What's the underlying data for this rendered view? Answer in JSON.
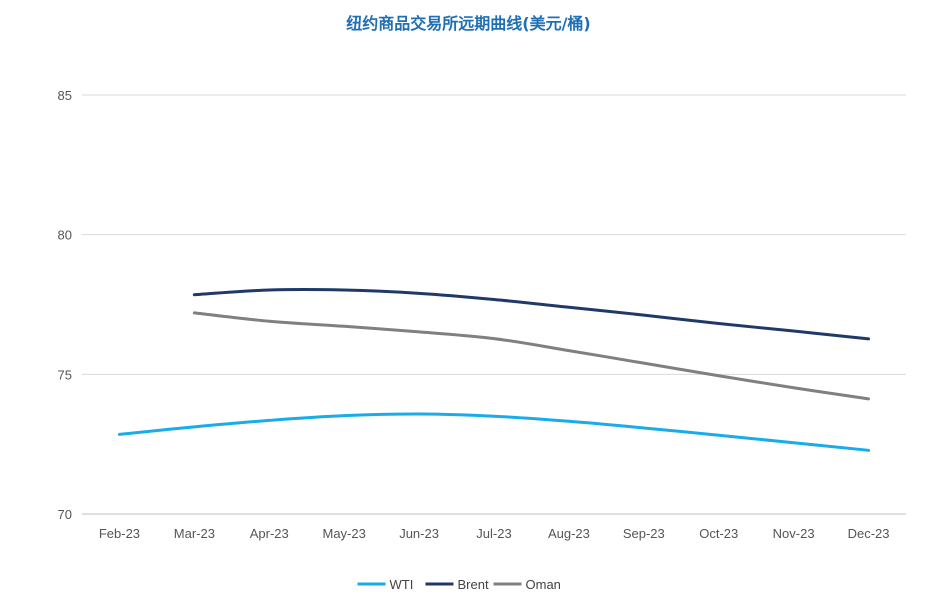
{
  "chart_data": {
    "type": "line",
    "title": "纽约商品交易所远期曲线(美元/桶)",
    "xlabel": "",
    "ylabel": "",
    "categories": [
      "Feb-23",
      "Mar-23",
      "Apr-23",
      "May-23",
      "Jun-23",
      "Jul-23",
      "Aug-23",
      "Sep-23",
      "Oct-23",
      "Nov-23",
      "Dec-23"
    ],
    "ylim": [
      70,
      85
    ],
    "yticks": [
      70,
      75,
      80,
      85
    ],
    "grid": true,
    "legend_position": "bottom",
    "series": [
      {
        "name": "WTI",
        "color": "#1aace8",
        "values": [
          72.85,
          73.12,
          73.35,
          73.52,
          73.58,
          73.5,
          73.32,
          73.08,
          72.82,
          72.55,
          72.28
        ]
      },
      {
        "name": "Brent",
        "color": "#1f3a68",
        "values": [
          null,
          77.85,
          78.02,
          78.02,
          77.9,
          77.68,
          77.4,
          77.12,
          76.82,
          76.55,
          76.27
        ]
      },
      {
        "name": "Oman",
        "color": "#808080",
        "values": [
          null,
          77.2,
          76.9,
          76.72,
          76.52,
          76.28,
          75.85,
          75.4,
          74.95,
          74.52,
          74.12
        ]
      }
    ]
  }
}
